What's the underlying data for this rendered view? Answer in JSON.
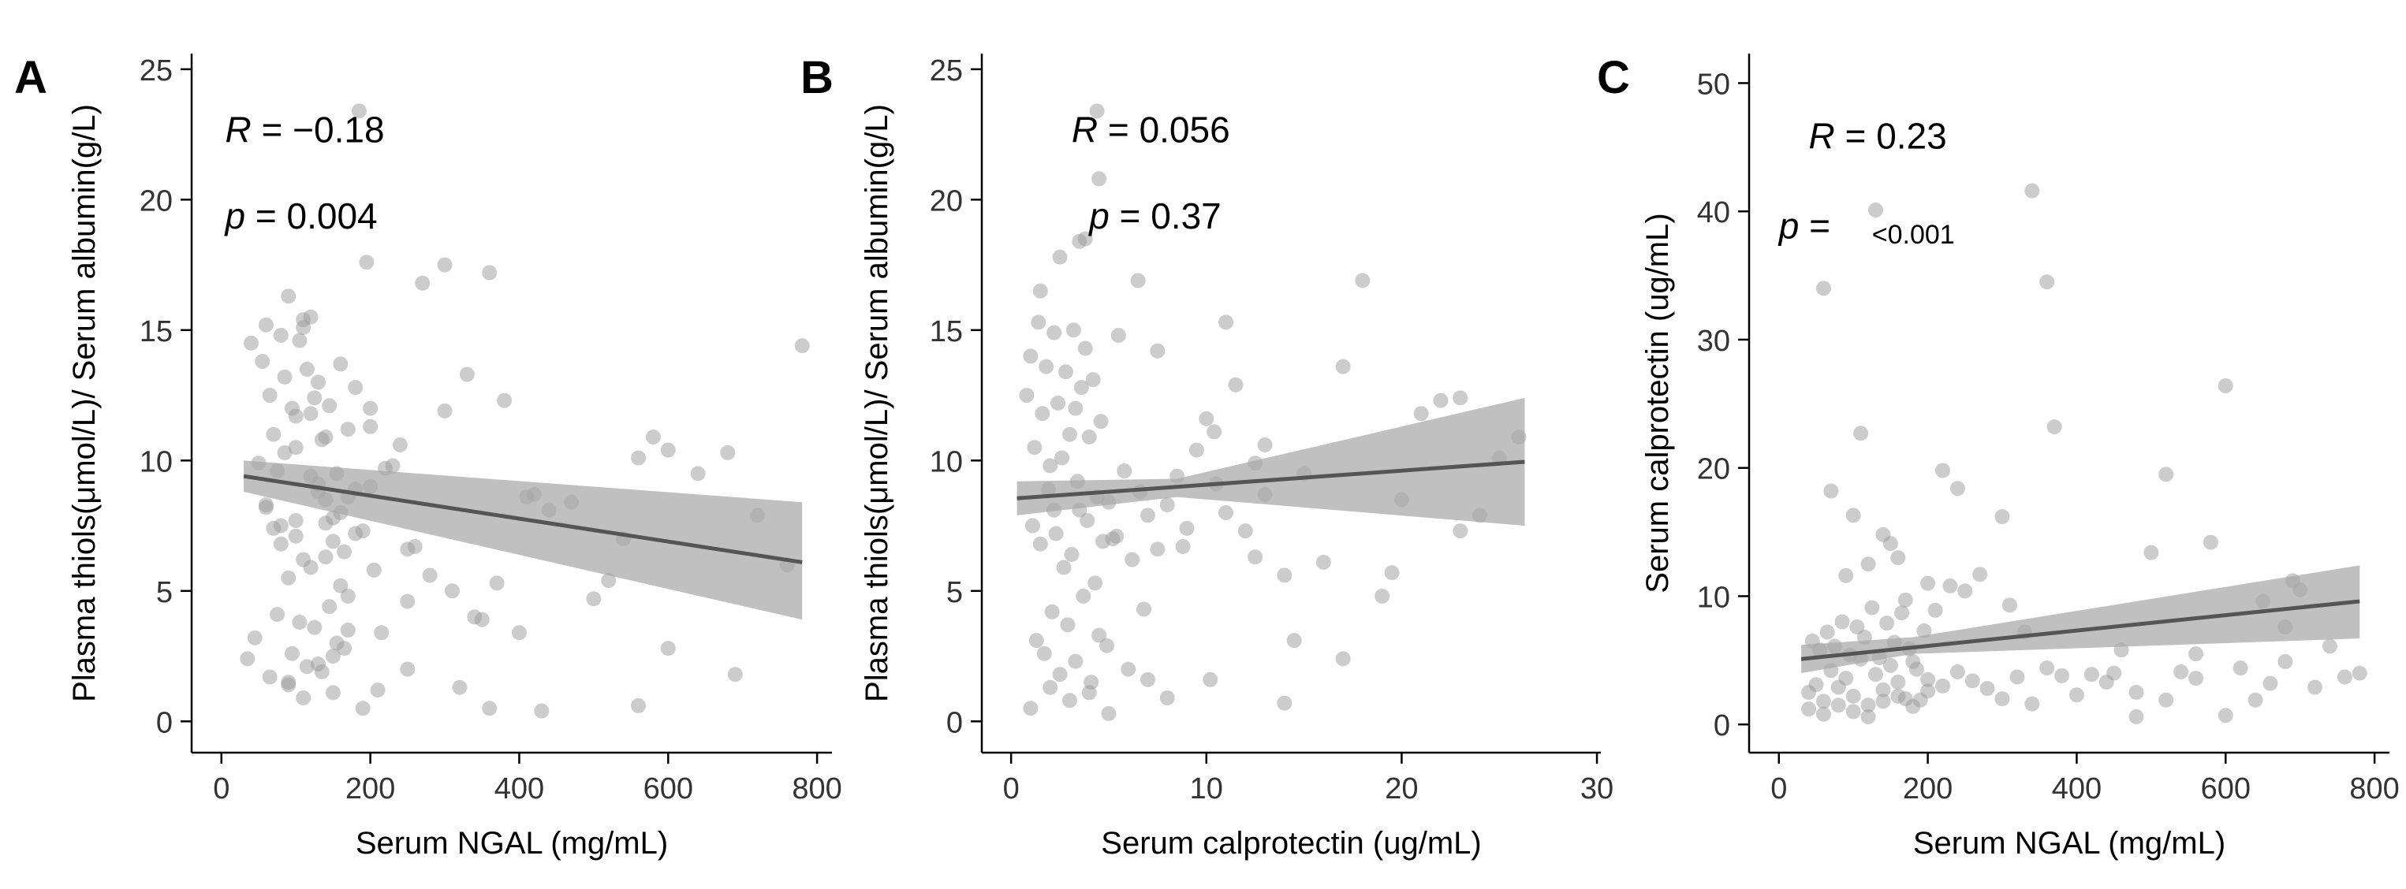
{
  "chart_data": [
    {
      "type": "scatter",
      "panel_label": "A",
      "xlabel": "Serum NGAL (mg/mL)",
      "ylabel": "Plasma thiols(μmol/L)/ Serum albumin(g/L)",
      "xlim": [
        -40,
        820
      ],
      "ylim": [
        -1.2,
        25.6
      ],
      "xticks": [
        0,
        200,
        400,
        600,
        800
      ],
      "yticks": [
        0,
        5,
        10,
        15,
        20,
        25
      ],
      "x_tick_labels": [
        "0",
        "200",
        "400",
        "600",
        "800"
      ],
      "y_tick_labels": [
        "0",
        "5",
        "10",
        "15",
        "20",
        "25"
      ],
      "stat_r": {
        "prefix": "R",
        "text": " = −0.18",
        "x": 5,
        "y": 22.2
      },
      "stat_p": {
        "prefix": "p",
        "text": " = 0.004",
        "x": 5,
        "y": 18.9
      },
      "fit": {
        "x": [
          30,
          780
        ],
        "y": [
          9.4,
          6.1
        ]
      },
      "ci_band": {
        "x": [
          30,
          780
        ],
        "lower": [
          8.8,
          3.9
        ],
        "upper": [
          10.0,
          8.4
        ]
      },
      "points": {
        "x": [
          40,
          55,
          60,
          65,
          70,
          75,
          80,
          85,
          90,
          95,
          100,
          105,
          110,
          115,
          120,
          125,
          130,
          135,
          140,
          145,
          150,
          155,
          160,
          165,
          170,
          60,
          70,
          80,
          90,
          100,
          110,
          120,
          130,
          140,
          150,
          160,
          170,
          180,
          190,
          200,
          45,
          75,
          95,
          105,
          115,
          125,
          135,
          145,
          155,
          165,
          50,
          85,
          100,
          120,
          140,
          160,
          180,
          200,
          220,
          240,
          35,
          65,
          90,
          110,
          130,
          150,
          170,
          190,
          210,
          250,
          270,
          300,
          330,
          360,
          380,
          185,
          195,
          205,
          215,
          230,
          260,
          280,
          310,
          340,
          370,
          410,
          440,
          470,
          500,
          540,
          580,
          600,
          640,
          680,
          720,
          780,
          360,
          400,
          430,
          560,
          760,
          300,
          200,
          100,
          420,
          320,
          120,
          560,
          600,
          170,
          80,
          140,
          60,
          180,
          250,
          690,
          520,
          350,
          250,
          150,
          90,
          130,
          110
        ],
        "y": [
          14.5,
          13.8,
          15.2,
          12.5,
          11.0,
          9.6,
          14.8,
          13.2,
          16.3,
          12.0,
          10.5,
          14.6,
          15.1,
          13.5,
          11.8,
          12.4,
          9.1,
          10.8,
          8.5,
          12.1,
          7.8,
          9.5,
          13.7,
          6.5,
          11.2,
          8.2,
          7.4,
          6.8,
          5.5,
          7.1,
          6.2,
          5.9,
          8.8,
          7.6,
          6.9,
          5.2,
          4.8,
          8.9,
          7.3,
          9.0,
          3.2,
          4.1,
          2.6,
          3.8,
          2.1,
          3.6,
          1.9,
          4.4,
          3.0,
          2.8,
          9.9,
          10.3,
          11.7,
          9.4,
          10.9,
          8.0,
          12.8,
          11.3,
          9.7,
          10.6,
          2.4,
          1.7,
          1.4,
          0.9,
          2.2,
          1.1,
          3.5,
          0.5,
          1.2,
          2.0,
          16.8,
          17.5,
          13.3,
          17.2,
          12.3,
          23.4,
          17.6,
          5.8,
          3.4,
          9.8,
          6.7,
          5.6,
          5.0,
          4.0,
          5.3,
          8.6,
          8.1,
          8.4,
          4.7,
          7.0,
          10.9,
          10.4,
          9.5,
          10.3,
          7.9,
          14.4,
          0.5,
          3.4,
          0.4,
          0.6,
          6.0,
          11.9,
          12.0,
          7.7,
          8.7,
          1.3,
          15.5,
          10.1,
          2.8,
          8.6,
          7.5,
          6.3,
          8.3,
          7.2,
          6.6,
          1.8,
          5.4,
          3.9,
          4.6,
          2.5,
          1.5,
          13.0,
          15.4
        ]
      }
    },
    {
      "type": "scatter",
      "panel_label": "B",
      "xlabel": "Serum calprotectin (ug/mL)",
      "ylabel": "Plasma thiols(μmol/L)/ Serum albumin(g/L)",
      "xlim": [
        -1.5,
        30.2
      ],
      "ylim": [
        -1.2,
        25.6
      ],
      "xticks": [
        0,
        10,
        20,
        30
      ],
      "yticks": [
        0,
        5,
        10,
        15,
        20,
        25
      ],
      "x_tick_labels": [
        "0",
        "10",
        "20",
        "30"
      ],
      "y_tick_labels": [
        "0",
        "5",
        "10",
        "15",
        "20",
        "25"
      ],
      "stat_r": {
        "prefix": "R",
        "text": " = 0.056",
        "x": 3.1,
        "y": 22.2
      },
      "stat_p": {
        "prefix": "p",
        "text": " = 0.37",
        "x": 4.0,
        "y": 18.9
      },
      "fit": {
        "x": [
          0.3,
          26.3
        ],
        "y": [
          8.55,
          9.95
        ]
      },
      "ci_band": {
        "x": [
          0.3,
          8.5,
          26.3
        ],
        "lower": [
          7.9,
          8.6,
          7.5
        ],
        "upper": [
          9.2,
          9.3,
          12.4
        ]
      },
      "points": {
        "x": [
          0.8,
          1.0,
          1.2,
          1.4,
          1.6,
          1.8,
          2.0,
          2.2,
          2.4,
          2.6,
          2.8,
          3.0,
          3.2,
          3.4,
          3.6,
          3.8,
          4.0,
          4.2,
          4.4,
          4.6,
          1.1,
          1.5,
          1.9,
          2.3,
          2.7,
          3.1,
          3.5,
          3.9,
          4.3,
          4.7,
          5.0,
          5.4,
          5.8,
          6.2,
          6.6,
          7.0,
          7.5,
          8.0,
          8.5,
          9.0,
          1.3,
          1.7,
          2.1,
          2.5,
          2.9,
          3.3,
          3.7,
          4.1,
          4.5,
          4.9,
          9.5,
          10.0,
          10.5,
          11.0,
          11.5,
          12.0,
          12.5,
          13.0,
          14.0,
          15.0,
          16.0,
          17.0,
          18.0,
          19.0,
          20.0,
          21.0,
          22.0,
          23.0,
          24.0,
          25.0,
          26.0,
          1.0,
          2.0,
          3.0,
          4.0,
          5.0,
          6.0,
          7.0,
          8.0,
          1.5,
          2.5,
          3.5,
          4.5,
          5.5,
          6.5,
          7.5,
          11.0,
          13.0,
          14.5,
          17.0,
          19.5,
          23.0,
          10.4,
          8.8,
          12.5,
          6.8,
          4.4,
          3.3,
          2.2,
          3.8,
          5.2,
          10.2,
          14.0
        ],
        "y": [
          12.5,
          14.0,
          10.5,
          15.3,
          11.8,
          13.6,
          9.8,
          14.9,
          12.2,
          10.1,
          13.4,
          11.0,
          15.0,
          9.2,
          12.8,
          14.3,
          10.9,
          13.1,
          8.6,
          11.5,
          7.5,
          6.8,
          8.9,
          7.2,
          5.9,
          6.4,
          8.1,
          7.7,
          5.3,
          6.9,
          8.4,
          7.1,
          9.6,
          6.2,
          8.8,
          7.9,
          6.6,
          8.3,
          9.4,
          7.4,
          3.1,
          2.6,
          4.2,
          1.8,
          3.7,
          2.3,
          4.8,
          1.5,
          3.3,
          2.9,
          10.4,
          11.6,
          9.1,
          8.0,
          12.9,
          7.3,
          9.9,
          8.7,
          5.6,
          9.5,
          6.1,
          13.6,
          16.9,
          4.8,
          8.5,
          11.8,
          12.3,
          12.4,
          7.9,
          10.1,
          10.9,
          0.5,
          1.3,
          0.8,
          1.1,
          0.3,
          2.0,
          1.6,
          0.9,
          16.5,
          17.8,
          18.4,
          20.8,
          14.8,
          16.9,
          14.2,
          15.3,
          10.6,
          3.1,
          2.4,
          5.7,
          7.3,
          11.1,
          6.7,
          6.3,
          4.3,
          23.4,
          12.0,
          8.1,
          18.5,
          7.0,
          1.6,
          0.7
        ]
      }
    },
    {
      "type": "scatter",
      "panel_label": "C",
      "xlabel": "Serum NGAL (mg/mL)",
      "ylabel": "Serum calprotectin (ug/mL)",
      "xlim": [
        -40,
        820
      ],
      "ylim": [
        -2.2,
        52.3
      ],
      "xticks": [
        0,
        200,
        400,
        600,
        800
      ],
      "yticks": [
        0,
        10,
        20,
        30,
        40,
        50
      ],
      "x_tick_labels": [
        "0",
        "200",
        "400",
        "600",
        "800"
      ],
      "y_tick_labels": [
        "0",
        "10",
        "20",
        "30",
        "40",
        "50"
      ],
      "stat_r": {
        "prefix": "R",
        "text": " = 0.23",
        "x": 40,
        "y": 44.9
      },
      "stat_p": {
        "prefix": "p",
        "text": " = ",
        "x": 0,
        "y": 37.9
      },
      "stat_p_value": {
        "text": "<0.001",
        "x": 125,
        "y": 37.5
      },
      "fit": {
        "x": [
          30,
          780
        ],
        "y": [
          5.1,
          9.6
        ]
      },
      "ci_band": {
        "x": [
          30,
          180,
          780
        ],
        "lower": [
          4.0,
          5.5,
          6.7
        ],
        "upper": [
          6.2,
          6.8,
          12.4
        ]
      },
      "points": {
        "x": [
          40,
          50,
          60,
          70,
          80,
          90,
          100,
          110,
          120,
          130,
          140,
          150,
          160,
          170,
          180,
          190,
          200,
          45,
          55,
          65,
          75,
          85,
          95,
          105,
          115,
          125,
          135,
          145,
          155,
          165,
          175,
          185,
          195,
          40,
          60,
          80,
          100,
          120,
          140,
          160,
          180,
          200,
          220,
          240,
          260,
          280,
          300,
          320,
          340,
          360,
          380,
          400,
          420,
          440,
          460,
          480,
          500,
          520,
          540,
          560,
          580,
          600,
          620,
          640,
          660,
          680,
          700,
          720,
          740,
          760,
          780,
          100,
          120,
          140,
          160,
          200,
          220,
          240,
          270,
          300,
          340,
          360,
          370,
          520,
          600,
          650,
          690,
          480,
          60,
          110,
          130,
          150,
          90,
          210,
          250,
          70,
          170,
          450,
          330,
          560,
          310,
          230,
          680
        ],
        "y": [
          2.5,
          3.1,
          1.8,
          4.2,
          2.9,
          3.6,
          2.2,
          5.1,
          1.5,
          3.9,
          2.7,
          4.6,
          3.3,
          2.0,
          4.9,
          1.9,
          3.5,
          6.5,
          5.8,
          7.2,
          6.1,
          8.0,
          5.4,
          7.6,
          6.8,
          9.1,
          5.2,
          7.9,
          6.4,
          8.7,
          5.9,
          4.3,
          7.3,
          1.2,
          0.8,
          1.5,
          1.0,
          0.6,
          1.8,
          2.2,
          1.4,
          2.6,
          3.0,
          4.1,
          3.4,
          2.8,
          2.0,
          3.7,
          1.6,
          4.4,
          3.8,
          2.3,
          3.9,
          3.3,
          5.8,
          2.5,
          13.4,
          19.5,
          4.1,
          3.6,
          14.2,
          26.4,
          4.4,
          1.9,
          3.2,
          4.9,
          10.5,
          2.9,
          6.1,
          3.7,
          4.0,
          16.3,
          12.5,
          14.8,
          13.0,
          11.0,
          19.8,
          18.4,
          11.7,
          16.2,
          41.6,
          34.5,
          23.2,
          1.9,
          0.7,
          9.6,
          11.2,
          0.6,
          34.0,
          22.7,
          40.1,
          14.1,
          11.6,
          8.9,
          10.4,
          18.2,
          9.7,
          4.0,
          7.2,
          5.5,
          9.3,
          10.8,
          7.6
        ]
      }
    }
  ]
}
